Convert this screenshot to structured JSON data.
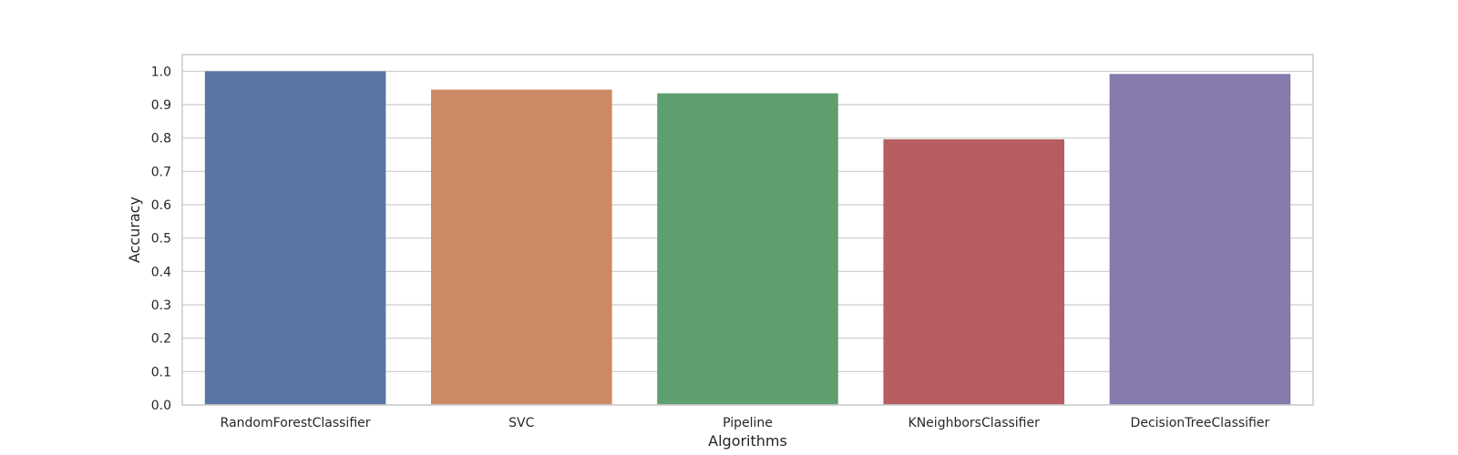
{
  "chart_data": {
    "type": "bar",
    "title": "",
    "xlabel": "Algorithms",
    "ylabel": "Accuracy",
    "categories": [
      "RandomForestClassifier",
      "SVC",
      "Pipeline",
      "KNeighborsClassifier",
      "DecisionTreeClassifier"
    ],
    "values": [
      1.0,
      0.945,
      0.934,
      0.796,
      0.992
    ],
    "colors": [
      "#5975a4",
      "#cc8963",
      "#5f9e6e",
      "#b55d60",
      "#857aab"
    ],
    "ylim": [
      0,
      1.05
    ],
    "yticks": [
      "0.0",
      "0.1",
      "0.2",
      "0.3",
      "0.4",
      "0.5",
      "0.6",
      "0.7",
      "0.8",
      "0.9",
      "1.0"
    ],
    "grid": true,
    "grid_axis": "y",
    "legend": "none"
  }
}
